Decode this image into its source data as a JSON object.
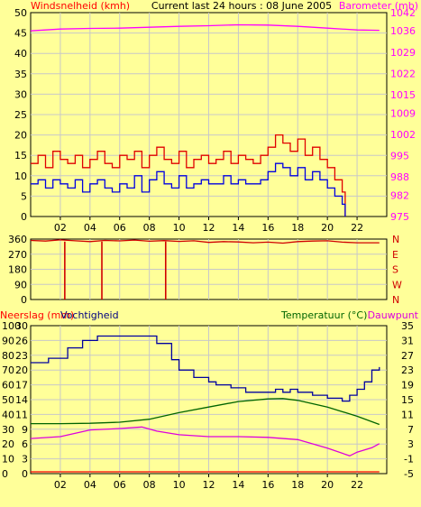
{
  "colors": {
    "background": "#ffff99",
    "grid": "#c8c8c8",
    "frame": "#000000",
    "wind_gust": "#e00000",
    "wind_avg": "#0000e0",
    "barometer": "#ff00ff",
    "direction": "#d00000",
    "humidity": "#0000a0",
    "temperature": "#006400",
    "dewpoint": "#dd00dd",
    "rain": "#ff0000"
  },
  "chart_data": [
    {
      "type": "line",
      "title": "Current last 24 hours : 08 June 2005",
      "ylabel": "Windsnelheid (kmh)",
      "y2label": "Barometer (mb)",
      "xlim": [
        0,
        24
      ],
      "xticks": [
        2,
        4,
        6,
        8,
        10,
        12,
        14,
        16,
        18,
        20,
        22
      ],
      "xticklabels": [
        "02",
        "04",
        "06",
        "08",
        "10",
        "12",
        "14",
        "16",
        "18",
        "20",
        "22"
      ],
      "ylim": [
        0,
        50
      ],
      "yticks": [
        0,
        5,
        10,
        15,
        20,
        25,
        30,
        35,
        40,
        45,
        50
      ],
      "yticklabels": [
        "0",
        "5",
        "10",
        "15",
        "20",
        "25",
        "30",
        "35",
        "40",
        "45",
        "50"
      ],
      "y2lim": [
        975,
        1042
      ],
      "y2ticks": [
        975,
        982,
        988,
        995,
        1002,
        1009,
        1015,
        1022,
        1029,
        1036,
        1042
      ],
      "y2ticklabels": [
        "975",
        "982",
        "988",
        "995",
        "1002",
        "1009",
        "1015",
        "1022",
        "1029",
        "1036",
        "1042"
      ],
      "grid": true,
      "series": [
        {
          "name": "Wind gust",
          "axis": "left",
          "style": "step",
          "x": [
            0,
            0.5,
            1,
            1.5,
            2,
            2.5,
            3,
            3.5,
            4,
            4.5,
            5,
            5.5,
            6,
            6.5,
            7,
            7.5,
            8,
            8.5,
            9,
            9.5,
            10,
            10.5,
            11,
            11.5,
            12,
            12.5,
            13,
            13.5,
            14,
            14.5,
            15,
            15.5,
            16,
            16.5,
            17,
            17.5,
            18,
            18.5,
            19,
            19.5,
            20,
            20.5,
            21,
            21.2
          ],
          "values": [
            13,
            15,
            12,
            16,
            14,
            13,
            15,
            12,
            14,
            16,
            13,
            12,
            15,
            14,
            16,
            12,
            15,
            17,
            14,
            13,
            16,
            12,
            14,
            15,
            13,
            14,
            16,
            13,
            15,
            14,
            13,
            15,
            17,
            20,
            18,
            16,
            19,
            15,
            17,
            14,
            12,
            9,
            6,
            0
          ]
        },
        {
          "name": "Wind average",
          "axis": "left",
          "style": "step",
          "x": [
            0,
            0.5,
            1,
            1.5,
            2,
            2.5,
            3,
            3.5,
            4,
            4.5,
            5,
            5.5,
            6,
            6.5,
            7,
            7.5,
            8,
            8.5,
            9,
            9.5,
            10,
            10.5,
            11,
            11.5,
            12,
            12.5,
            13,
            13.5,
            14,
            14.5,
            15,
            15.5,
            16,
            16.5,
            17,
            17.5,
            18,
            18.5,
            19,
            19.5,
            20,
            20.5,
            21,
            21.2
          ],
          "values": [
            8,
            9,
            7,
            9,
            8,
            7,
            9,
            6,
            8,
            9,
            7,
            6,
            8,
            7,
            10,
            6,
            9,
            11,
            8,
            7,
            10,
            7,
            8,
            9,
            8,
            8,
            10,
            8,
            9,
            8,
            8,
            9,
            11,
            13,
            12,
            10,
            12,
            9,
            11,
            9,
            7,
            5,
            3,
            0
          ]
        },
        {
          "name": "Barometer",
          "axis": "right",
          "x": [
            0,
            2,
            4,
            6,
            8,
            10,
            12,
            14,
            16,
            18,
            20,
            22,
            23.5
          ],
          "values": [
            1036,
            1036.6,
            1036.8,
            1036.9,
            1037.2,
            1037.5,
            1037.7,
            1038,
            1037.9,
            1037.5,
            1036.9,
            1036.3,
            1036.2
          ]
        }
      ]
    },
    {
      "type": "scatter",
      "xlim": [
        0,
        24
      ],
      "ylim": [
        0,
        360
      ],
      "yticks": [
        0,
        90,
        180,
        270,
        360
      ],
      "yticklabels": [
        "0",
        "90",
        "180",
        "270",
        "360"
      ],
      "y2ticklabels": [
        "N",
        "W",
        "S",
        "E",
        "N"
      ],
      "grid": true,
      "series": [
        {
          "name": "Wind direction",
          "x": [
            0,
            1,
            2,
            3,
            4,
            5,
            6,
            7,
            8,
            9,
            10,
            11,
            12,
            13,
            14,
            15,
            16,
            17,
            18,
            19,
            20,
            21,
            22,
            23.5
          ],
          "values": [
            352,
            348,
            355,
            350,
            345,
            352,
            349,
            354,
            347,
            351,
            346,
            350,
            340,
            345,
            343,
            338,
            342,
            336,
            345,
            348,
            350,
            342,
            338,
            338
          ]
        },
        {
          "name": "Wind direction dips",
          "x": [
            2.3,
            4.8,
            9.1
          ],
          "values": [
            0,
            0,
            0
          ]
        }
      ]
    },
    {
      "type": "line",
      "ylabel": "Neerslag (mm)",
      "y2label_left": "Vochtigheid",
      "y3label": "Temperatuur (°C)",
      "y4label": "Dauwpunt",
      "xlim": [
        0,
        24
      ],
      "xticks": [
        2,
        4,
        6,
        8,
        10,
        12,
        14,
        16,
        18,
        20,
        22
      ],
      "xticklabels": [
        "02",
        "04",
        "06",
        "08",
        "10",
        "12",
        "14",
        "16",
        "18",
        "20",
        "22"
      ],
      "ylim": [
        0,
        100
      ],
      "yticks": [
        0,
        10,
        20,
        30,
        40,
        50,
        60,
        70,
        80,
        90,
        100
      ],
      "yticklabels": [
        "0",
        "10",
        "20",
        "30",
        "40",
        "50",
        "60",
        "70",
        "80",
        "90",
        "100"
      ],
      "rain_ticklabels": [
        "0",
        "3",
        "6",
        "9",
        "11",
        "14",
        "17",
        "20",
        "23",
        "26",
        "30"
      ],
      "y2lim": [
        -5,
        35
      ],
      "y2ticks": [
        -5,
        -1,
        3,
        7,
        11,
        15,
        19,
        23,
        27,
        31,
        35
      ],
      "y2ticklabels": [
        "-5",
        "-1",
        "3",
        "7",
        "11",
        "15",
        "19",
        "23",
        "27",
        "31",
        "35"
      ],
      "grid": true,
      "series": [
        {
          "name": "Vochtigheid",
          "axis": "left",
          "style": "step",
          "x": [
            0,
            1.2,
            2.5,
            3.5,
            4.5,
            5.5,
            6.5,
            7.5,
            8.5,
            9.5,
            10,
            11,
            12,
            12.5,
            13.5,
            14.5,
            16,
            16.5,
            17,
            17.5,
            18,
            19,
            20,
            21,
            21.5,
            22,
            22.5,
            23,
            23.5
          ],
          "values": [
            75,
            78,
            85,
            90,
            93,
            93,
            93,
            93,
            88,
            77,
            70,
            65,
            62,
            60,
            58,
            55,
            55,
            57,
            55,
            57,
            55,
            53,
            51,
            49,
            53,
            57,
            62,
            70,
            72
          ]
        },
        {
          "name": "Temperatuur",
          "axis": "right",
          "x": [
            0,
            2,
            4,
            6,
            8,
            10,
            12,
            14,
            16,
            17,
            18,
            20,
            22,
            23.5
          ],
          "values": [
            8.5,
            8.5,
            8.6,
            8.9,
            9.7,
            11.5,
            13.0,
            14.5,
            15.2,
            15.3,
            14.8,
            13.0,
            10.5,
            8.3
          ]
        },
        {
          "name": "Dauwpunt",
          "axis": "right",
          "x": [
            0,
            2,
            4,
            6,
            7.5,
            8.5,
            10,
            12,
            14,
            16,
            18,
            20,
            21.5,
            22,
            23,
            23.5
          ],
          "values": [
            4.5,
            5.0,
            6.8,
            7.2,
            7.6,
            6.5,
            5.5,
            5.0,
            5.0,
            4.8,
            4.2,
            1.9,
            -0.2,
            0.8,
            2.0,
            3.1
          ]
        },
        {
          "name": "Neerslag",
          "axis": "rain",
          "x": [
            0,
            23.5
          ],
          "values": [
            0,
            0
          ]
        }
      ]
    }
  ]
}
